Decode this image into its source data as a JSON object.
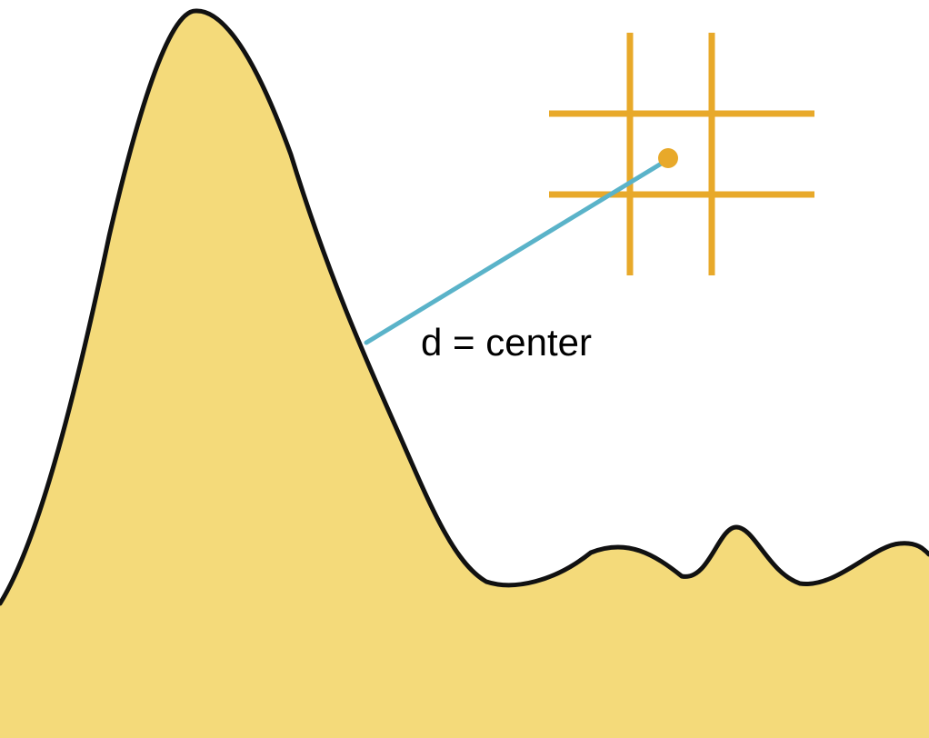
{
  "label": "d = center",
  "colors": {
    "background": "#ffffff",
    "fill": "#f4da7a",
    "outline": "#111111",
    "grid": "#e8a92a",
    "center_dot": "#e8a92a",
    "connector": "#5ab3c9",
    "text": "#000000"
  }
}
